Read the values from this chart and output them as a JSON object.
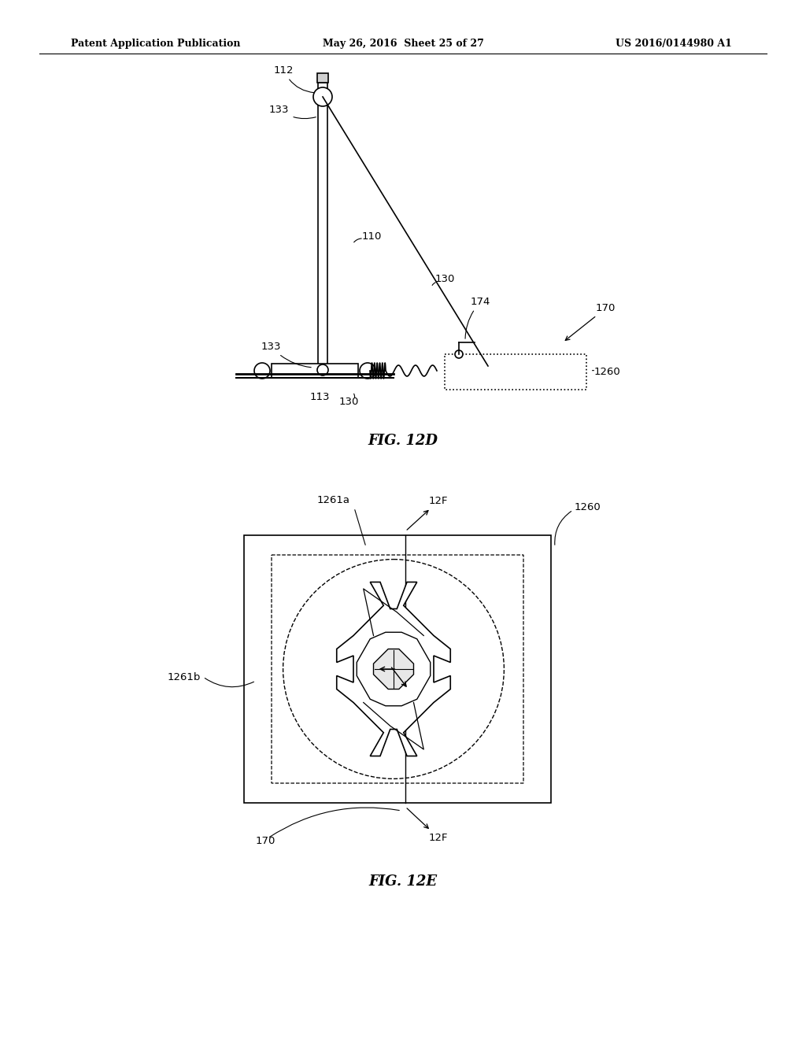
{
  "background_color": "#ffffff",
  "header_left": "Patent Application Publication",
  "header_center": "May 26, 2016  Sheet 25 of 27",
  "header_right": "US 2016/0144980 A1",
  "fig12d_label": "FIG. 12D",
  "fig12e_label": "FIG. 12E"
}
